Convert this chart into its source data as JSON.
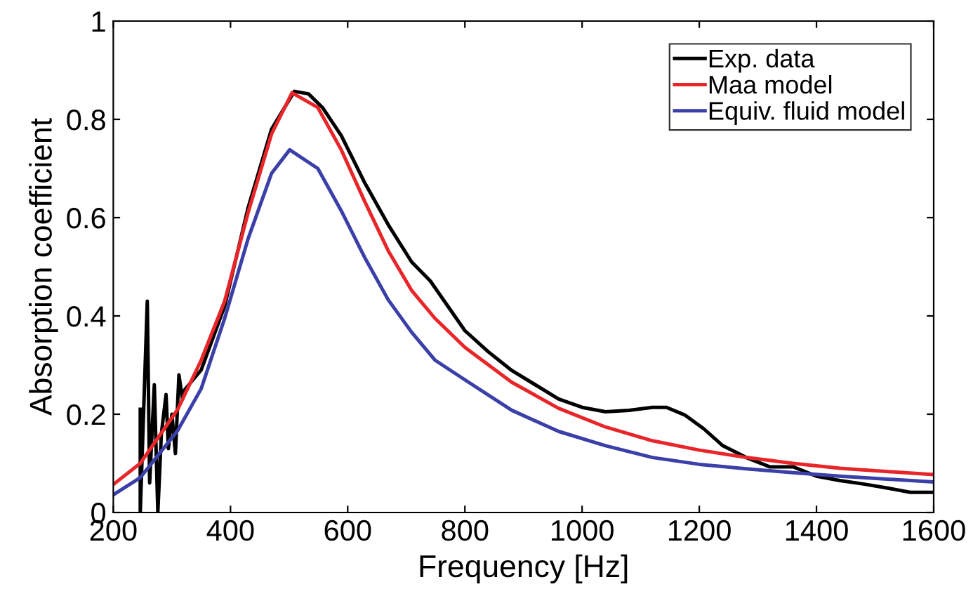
{
  "chart_data": {
    "type": "line",
    "xlabel": "Frequency [Hz]",
    "ylabel": "Absorption coefficient",
    "xlim": [
      200,
      1600
    ],
    "ylim": [
      0,
      1
    ],
    "xticks": [
      200,
      400,
      600,
      800,
      1000,
      1200,
      1400,
      1600
    ],
    "yticks": [
      0,
      0.2,
      0.4,
      0.6,
      0.8,
      1
    ],
    "grid": false,
    "legend": "top right",
    "marker": "none",
    "line_style": "solid",
    "series": [
      {
        "name": "Exp. data",
        "color": "#000000",
        "x": [
          246,
          246,
          258,
          262,
          270,
          276,
          282,
          290,
          294,
          300,
          306,
          312,
          318,
          322,
          350,
          390,
          430,
          470,
          509,
          533,
          557,
          589,
          629,
          669,
          709,
          741,
          800,
          840,
          880,
          920,
          960,
          1000,
          1040,
          1080,
          1120,
          1144,
          1176,
          1208,
          1240,
          1280,
          1320,
          1360,
          1400,
          1440,
          1480,
          1520,
          1560,
          1600
        ],
        "values": [
          0.21,
          0,
          0.43,
          0.06,
          0.26,
          0,
          0.16,
          0.24,
          0.13,
          0.2,
          0.12,
          0.28,
          0.23,
          0.25,
          0.29,
          0.42,
          0.62,
          0.78,
          0.857,
          0.852,
          0.824,
          0.767,
          0.671,
          0.586,
          0.51,
          0.471,
          0.37,
          0.327,
          0.289,
          0.26,
          0.231,
          0.214,
          0.205,
          0.208,
          0.214,
          0.214,
          0.198,
          0.17,
          0.136,
          0.112,
          0.093,
          0.093,
          0.074,
          0.065,
          0.058,
          0.05,
          0.041,
          0.041
        ]
      },
      {
        "name": "Maa model",
        "color": "#e8262a",
        "x": [
          200,
          246,
          310,
          350,
          390,
          430,
          470,
          505,
          549,
          589,
          629,
          669,
          709,
          749,
          800,
          880,
          960,
          1040,
          1120,
          1200,
          1280,
          1360,
          1440,
          1600
        ],
        "values": [
          0.057,
          0.1,
          0.21,
          0.31,
          0.43,
          0.61,
          0.77,
          0.854,
          0.824,
          0.738,
          0.633,
          0.533,
          0.452,
          0.395,
          0.336,
          0.265,
          0.212,
          0.174,
          0.146,
          0.127,
          0.112,
          0.1,
          0.09,
          0.077
        ]
      },
      {
        "name": "Equiv. fluid model",
        "color": "#3b3fa8",
        "x": [
          200,
          246,
          310,
          350,
          390,
          430,
          470,
          501,
          549,
          589,
          629,
          669,
          709,
          749,
          800,
          880,
          960,
          1040,
          1120,
          1200,
          1280,
          1360,
          1440,
          1600
        ],
        "values": [
          0.036,
          0.071,
          0.167,
          0.252,
          0.395,
          0.557,
          0.69,
          0.738,
          0.7,
          0.614,
          0.519,
          0.433,
          0.367,
          0.31,
          0.27,
          0.208,
          0.165,
          0.136,
          0.112,
          0.098,
          0.089,
          0.081,
          0.074,
          0.062
        ]
      }
    ]
  }
}
